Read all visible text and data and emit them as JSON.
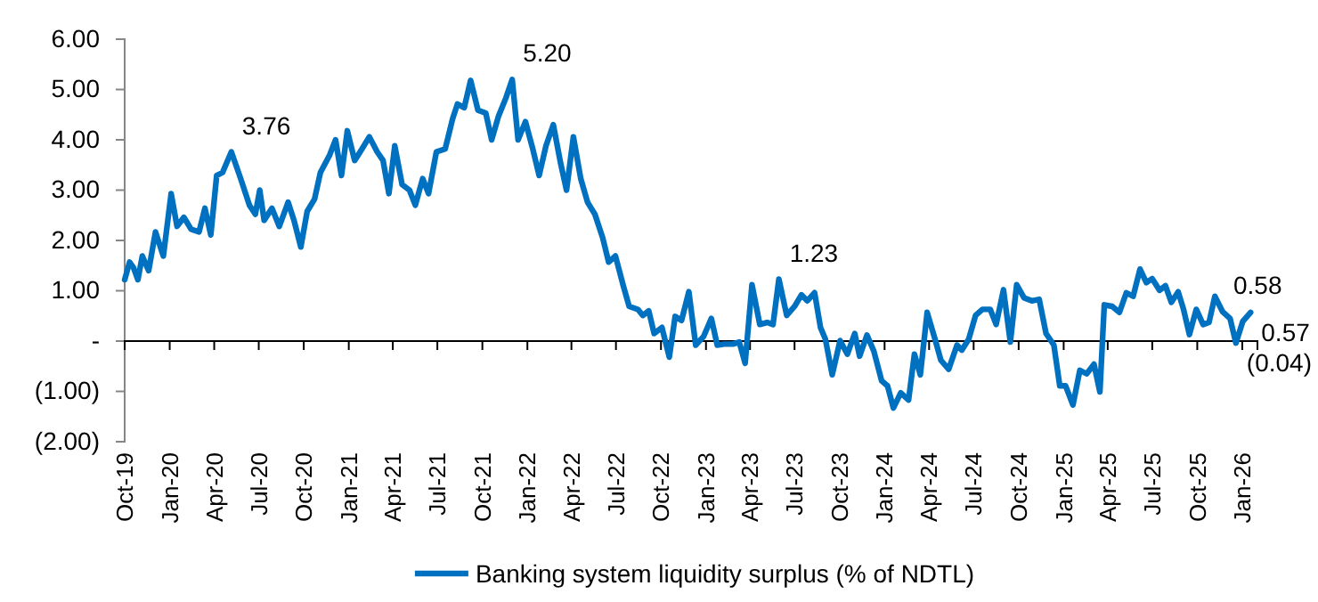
{
  "chart_data": {
    "type": "line",
    "x": [
      "2019-10-01",
      "2019-10-11",
      "2019-10-19",
      "2019-10-28",
      "2019-11-06",
      "2019-11-19",
      "2019-12-03",
      "2019-12-19",
      "2020-01-04",
      "2020-01-16",
      "2020-01-30",
      "2020-02-14",
      "2020-03-01",
      "2020-03-13",
      "2020-03-25",
      "2020-04-06",
      "2020-04-18",
      "2020-05-06",
      "2020-05-25",
      "2020-06-12",
      "2020-06-24",
      "2020-07-03",
      "2020-07-12",
      "2020-07-28",
      "2020-08-12",
      "2020-08-30",
      "2020-09-11",
      "2020-09-25",
      "2020-10-08",
      "2020-10-23",
      "2020-11-04",
      "2020-11-23",
      "2020-12-05",
      "2020-12-17",
      "2020-12-29",
      "2021-01-13",
      "2021-01-28",
      "2021-02-12",
      "2021-02-28",
      "2021-03-12",
      "2021-03-24",
      "2021-04-05",
      "2021-04-20",
      "2021-05-05",
      "2021-05-17",
      "2021-06-01",
      "2021-06-13",
      "2021-06-29",
      "2021-07-17",
      "2021-08-01",
      "2021-08-11",
      "2021-08-25",
      "2021-09-07",
      "2021-09-22",
      "2021-10-08",
      "2021-10-20",
      "2021-11-03",
      "2021-11-18",
      "2021-12-01",
      "2021-12-13",
      "2021-12-28",
      "2022-01-12",
      "2022-01-25",
      "2022-02-08",
      "2022-02-23",
      "2022-03-10",
      "2022-03-22",
      "2022-04-05",
      "2022-04-20",
      "2022-05-04",
      "2022-05-19",
      "2022-06-04",
      "2022-06-16",
      "2022-06-30",
      "2022-07-16",
      "2022-07-28",
      "2022-08-15",
      "2022-08-25",
      "2022-09-06",
      "2022-09-17",
      "2022-10-03",
      "2022-10-18",
      "2022-10-30",
      "2022-11-12",
      "2022-11-27",
      "2022-12-11",
      "2022-12-27",
      "2023-01-12",
      "2023-01-24",
      "2023-02-07",
      "2023-02-25",
      "2023-03-10",
      "2023-03-22",
      "2023-04-05",
      "2023-04-21",
      "2023-05-06",
      "2023-05-18",
      "2023-05-30",
      "2023-06-15",
      "2023-07-01",
      "2023-07-15",
      "2023-07-27",
      "2023-08-11",
      "2023-08-23",
      "2023-09-02",
      "2023-09-16",
      "2023-10-02",
      "2023-10-17",
      "2023-11-01",
      "2023-11-11",
      "2023-11-26",
      "2023-12-10",
      "2023-12-26",
      "2024-01-07",
      "2024-01-19",
      "2024-02-03",
      "2024-02-19",
      "2024-03-02",
      "2024-03-14",
      "2024-03-28",
      "2024-04-13",
      "2024-04-25",
      "2024-05-11",
      "2024-05-28",
      "2024-06-07",
      "2024-06-21",
      "2024-07-05",
      "2024-07-19",
      "2024-08-04",
      "2024-08-16",
      "2024-08-31",
      "2024-09-14",
      "2024-09-27",
      "2024-10-12",
      "2024-10-28",
      "2024-11-12",
      "2024-11-26",
      "2024-12-12",
      "2024-12-24",
      "2025-01-05",
      "2025-01-20",
      "2025-02-03",
      "2025-02-17",
      "2025-03-04",
      "2025-03-16",
      "2025-03-25",
      "2025-04-10",
      "2025-04-25",
      "2025-05-09",
      "2025-05-23",
      "2025-06-06",
      "2025-06-19",
      "2025-07-01",
      "2025-07-16",
      "2025-07-28",
      "2025-08-09",
      "2025-08-23",
      "2025-09-03",
      "2025-09-15",
      "2025-09-29",
      "2025-10-13",
      "2025-10-25",
      "2025-11-06",
      "2025-11-22",
      "2025-12-07",
      "2025-12-19",
      "2026-01-02",
      "2026-01-18"
    ],
    "series": [
      {
        "name": "Banking system liquidity surplus (% of NDTL)",
        "color": "#0070c0",
        "values": [
          1.22,
          1.57,
          1.46,
          1.22,
          1.69,
          1.4,
          2.17,
          1.69,
          2.93,
          2.28,
          2.46,
          2.22,
          2.17,
          2.64,
          2.11,
          3.29,
          3.35,
          3.76,
          3.23,
          2.7,
          2.52,
          3.0,
          2.4,
          2.64,
          2.28,
          2.76,
          2.4,
          1.87,
          2.58,
          2.82,
          3.35,
          3.7,
          4.0,
          3.29,
          4.18,
          3.59,
          3.82,
          4.06,
          3.76,
          3.59,
          2.93,
          3.88,
          3.11,
          3.0,
          2.7,
          3.23,
          2.93,
          3.76,
          3.82,
          4.41,
          4.71,
          4.64,
          5.18,
          4.59,
          4.53,
          4.0,
          4.47,
          4.83,
          5.2,
          4.0,
          4.36,
          3.82,
          3.29,
          3.88,
          4.3,
          3.53,
          3.0,
          4.06,
          3.23,
          2.76,
          2.52,
          2.05,
          1.57,
          1.69,
          1.1,
          0.69,
          0.63,
          0.51,
          0.6,
          0.15,
          0.27,
          -0.32,
          0.49,
          0.41,
          0.98,
          -0.08,
          0.09,
          0.45,
          -0.08,
          -0.06,
          -0.06,
          -0.02,
          -0.44,
          1.12,
          0.33,
          0.37,
          0.33,
          1.23,
          0.51,
          0.69,
          0.92,
          0.8,
          0.96,
          0.27,
          0.04,
          -0.67,
          0.01,
          -0.26,
          0.15,
          -0.3,
          0.12,
          -0.2,
          -0.79,
          -0.89,
          -1.33,
          -1.03,
          -1.17,
          -0.26,
          -0.67,
          0.57,
          0.04,
          -0.38,
          -0.56,
          -0.08,
          -0.18,
          0.04,
          0.51,
          0.63,
          0.63,
          0.33,
          1.02,
          -0.02,
          1.12,
          0.86,
          0.8,
          0.83,
          0.15,
          -0.08,
          -0.89,
          -0.89,
          -1.27,
          -0.58,
          -0.65,
          -0.46,
          -1.01,
          0.72,
          0.69,
          0.57,
          0.96,
          0.89,
          1.43,
          1.16,
          1.24,
          1.01,
          1.1,
          0.77,
          0.98,
          0.63,
          0.13,
          0.63,
          0.33,
          0.37,
          0.89,
          0.58,
          0.45,
          -0.04,
          0.39,
          0.57
        ]
      }
    ],
    "ylim": [
      -2,
      6
    ],
    "yticks": [
      {
        "value": -2,
        "label": "(2.00)"
      },
      {
        "value": -1,
        "label": "(1.00)"
      },
      {
        "value": 0,
        "label": "-"
      },
      {
        "value": 1,
        "label": "1.00"
      },
      {
        "value": 2,
        "label": "2.00"
      },
      {
        "value": 3,
        "label": "3.00"
      },
      {
        "value": 4,
        "label": "4.00"
      },
      {
        "value": 5,
        "label": "5.00"
      },
      {
        "value": 6,
        "label": "6.00"
      }
    ],
    "xlim": [
      "2019-10-01",
      "2026-02-01"
    ],
    "xticks": [
      {
        "value": "2019-10-01",
        "label": "Oct-19"
      },
      {
        "value": "2020-01-01",
        "label": "Jan-20"
      },
      {
        "value": "2020-04-01",
        "label": "Apr-20"
      },
      {
        "value": "2020-07-01",
        "label": "Jul-20"
      },
      {
        "value": "2020-10-01",
        "label": "Oct-20"
      },
      {
        "value": "2021-01-01",
        "label": "Jan-21"
      },
      {
        "value": "2021-04-01",
        "label": "Apr-21"
      },
      {
        "value": "2021-07-01",
        "label": "Jul-21"
      },
      {
        "value": "2021-10-01",
        "label": "Oct-21"
      },
      {
        "value": "2022-01-01",
        "label": "Jan-22"
      },
      {
        "value": "2022-04-01",
        "label": "Apr-22"
      },
      {
        "value": "2022-07-01",
        "label": "Jul-22"
      },
      {
        "value": "2022-10-01",
        "label": "Oct-22"
      },
      {
        "value": "2023-01-01",
        "label": "Jan-23"
      },
      {
        "value": "2023-04-01",
        "label": "Apr-23"
      },
      {
        "value": "2023-07-01",
        "label": "Jul-23"
      },
      {
        "value": "2023-10-01",
        "label": "Oct-23"
      },
      {
        "value": "2024-01-01",
        "label": "Jan-24"
      },
      {
        "value": "2024-04-01",
        "label": "Apr-24"
      },
      {
        "value": "2024-07-01",
        "label": "Jul-24"
      },
      {
        "value": "2024-10-01",
        "label": "Oct-24"
      },
      {
        "value": "2025-01-01",
        "label": "Jan-25"
      },
      {
        "value": "2025-04-01",
        "label": "Apr-25"
      },
      {
        "value": "2025-07-01",
        "label": "Jul-25"
      },
      {
        "value": "2025-10-01",
        "label": "Oct-25"
      },
      {
        "value": "2026-01-01",
        "label": "Jan-26"
      }
    ],
    "annotations": [
      {
        "text": "3.76",
        "x": "2020-05-06",
        "y": 3.76
      },
      {
        "text": "5.20",
        "x": "2021-12-01",
        "y": 5.2
      },
      {
        "text": "1.23",
        "x": "2023-05-30",
        "y": 1.23
      },
      {
        "text": "0.58",
        "x": "2025-11-22",
        "y": 0.58
      },
      {
        "text": "0.57",
        "x": "2026-01-18",
        "y": 0.57
      },
      {
        "text": "(0.04)",
        "x": "2025-12-19",
        "y": -0.04
      }
    ],
    "legend": "bottom",
    "grid": false,
    "marker": "none",
    "line_style": "solid"
  }
}
